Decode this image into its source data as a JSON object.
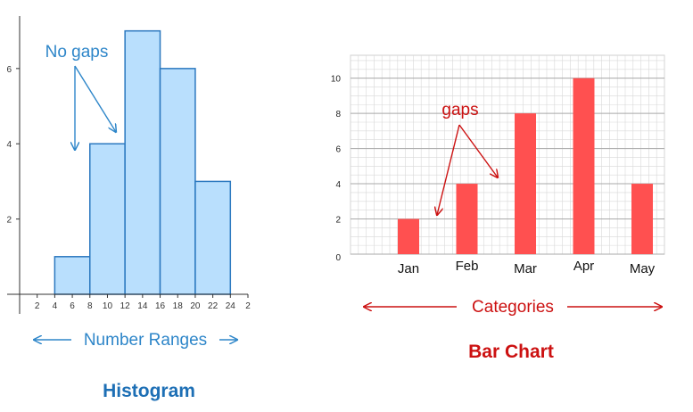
{
  "chart_data": [
    {
      "type": "bar",
      "title": "Histogram",
      "xlabel": "Number Ranges",
      "ylabel": "",
      "bins": [
        [
          0,
          4
        ],
        [
          4,
          8
        ],
        [
          8,
          12
        ],
        [
          12,
          16
        ],
        [
          16,
          20
        ],
        [
          20,
          24
        ]
      ],
      "values": [
        0,
        1,
        4,
        7,
        6,
        3
      ],
      "x_ticks": [
        "2",
        "4",
        "6",
        "8",
        "10",
        "12",
        "14",
        "16",
        "18",
        "20",
        "22",
        "24",
        "2"
      ],
      "y_ticks": [
        "2",
        "4",
        "6"
      ],
      "xlim": [
        0,
        26
      ],
      "ylim": [
        0,
        7.3
      ],
      "grid": false,
      "annotation": "No gaps",
      "colors": {
        "fill": "#b9dffd",
        "stroke": "#2b78bf",
        "text": "#2e86c9"
      }
    },
    {
      "type": "bar",
      "title": "Bar Chart",
      "xlabel": "Categories",
      "ylabel": "",
      "categories": [
        "Jan",
        "Feb",
        "Mar",
        "Apr",
        "May"
      ],
      "values": [
        2,
        4,
        8,
        10,
        4
      ],
      "y_ticks": [
        "0",
        "2",
        "4",
        "6",
        "8",
        "10"
      ],
      "ylim": [
        0,
        11.3
      ],
      "grid": true,
      "annotation": "gaps",
      "colors": {
        "fill": "#ff5050",
        "text": "#cc1111",
        "grid": "#d8d8d8"
      }
    }
  ]
}
